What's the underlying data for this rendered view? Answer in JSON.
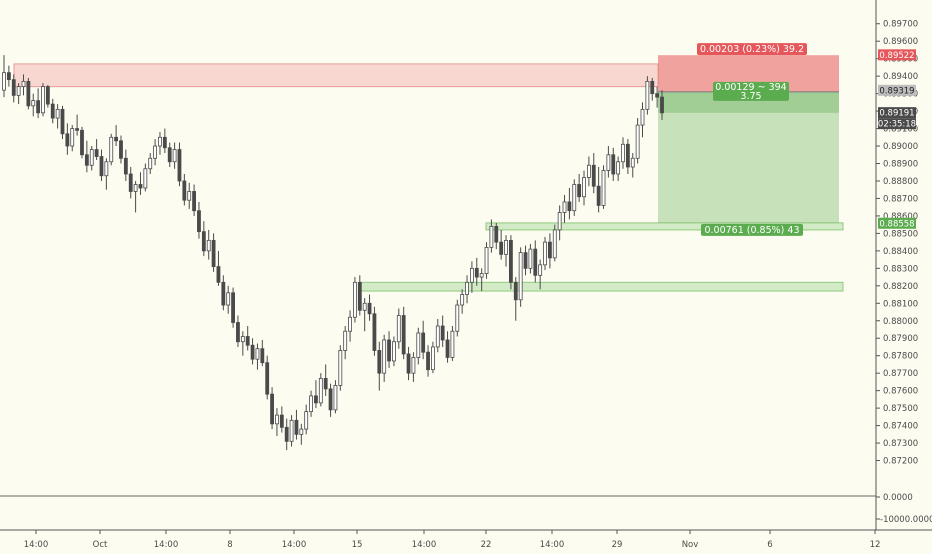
{
  "chart_data": {
    "type": "candlestick",
    "price_axis": {
      "min": 0.871,
      "max": 0.8975,
      "ticks": [
        "0.89700",
        "0.89600",
        "0.89500",
        "0.89400",
        "0.89300",
        "0.89200",
        "0.89100",
        "0.89000",
        "0.88900",
        "0.88800",
        "0.88700",
        "0.88600",
        "0.88500",
        "0.88400",
        "0.88300",
        "0.88200",
        "0.88100",
        "0.88000",
        "0.87900",
        "0.87800",
        "0.87700",
        "0.87600",
        "0.87500",
        "0.87400",
        "0.87300",
        "0.87200"
      ]
    },
    "volume_axis": {
      "ticks": [
        "0.0000",
        "-10000.0000"
      ]
    },
    "time_axis": {
      "ticks": [
        "14:00",
        "Oct",
        "14:00",
        "8",
        "14:00",
        "15",
        "14:00",
        "22",
        "14:00",
        "29",
        "Nov",
        "6",
        "12"
      ]
    },
    "price_labels": {
      "stop": "0.89522",
      "last": "0.89319",
      "current": "0.89191",
      "countdown": "02:35:18",
      "target": "0.88558"
    },
    "position": {
      "risk_label": "0.00203 (0.23%) 39.2",
      "info_line1": "0.00129 ~ 394",
      "info_line2": "3.75",
      "reward_label": "0.00761 (0.85%) 43",
      "entry": 0.8931,
      "stop": 0.8952,
      "target": 0.8856
    },
    "zones": [
      {
        "type": "supply",
        "top": 0.8947,
        "bottom": 0.8934
      },
      {
        "type": "demand",
        "top": 0.8856,
        "bottom": 0.8852
      },
      {
        "type": "demand",
        "top": 0.8822,
        "bottom": 0.8817
      }
    ],
    "colors": {
      "background": "#fdfcf1",
      "candle": "#4a4a4a",
      "risk": "#e5575a",
      "reward": "#5bab4f",
      "zone_red": "#f4b8b6",
      "zone_green": "#bfe2b2"
    },
    "candles": [
      [
        0.8932,
        0.8952,
        0.8928,
        0.8942
      ],
      [
        0.8942,
        0.8946,
        0.8934,
        0.8938
      ],
      [
        0.8938,
        0.8941,
        0.8925,
        0.8929
      ],
      [
        0.8929,
        0.8936,
        0.8924,
        0.8934
      ],
      [
        0.8934,
        0.8941,
        0.8929,
        0.8937
      ],
      [
        0.8937,
        0.8939,
        0.8921,
        0.8923
      ],
      [
        0.8923,
        0.893,
        0.8917,
        0.8926
      ],
      [
        0.8926,
        0.8933,
        0.8916,
        0.8919
      ],
      [
        0.8919,
        0.8936,
        0.8917,
        0.8934
      ],
      [
        0.8934,
        0.8935,
        0.8922,
        0.8924
      ],
      [
        0.8924,
        0.8927,
        0.8913,
        0.8916
      ],
      [
        0.8916,
        0.8924,
        0.891,
        0.8921
      ],
      [
        0.8921,
        0.8923,
        0.8904,
        0.8907
      ],
      [
        0.8907,
        0.8913,
        0.8895,
        0.89
      ],
      [
        0.89,
        0.8912,
        0.8897,
        0.891
      ],
      [
        0.891,
        0.8918,
        0.8906,
        0.8909
      ],
      [
        0.8909,
        0.8911,
        0.8893,
        0.8895
      ],
      [
        0.8895,
        0.8903,
        0.8885,
        0.8889
      ],
      [
        0.8889,
        0.89,
        0.8886,
        0.8898
      ],
      [
        0.8898,
        0.8904,
        0.8892,
        0.8894
      ],
      [
        0.8894,
        0.8898,
        0.888,
        0.8883
      ],
      [
        0.8883,
        0.8893,
        0.8875,
        0.8891
      ],
      [
        0.8891,
        0.8907,
        0.8889,
        0.8905
      ],
      [
        0.8905,
        0.8912,
        0.89,
        0.8903
      ],
      [
        0.8903,
        0.8906,
        0.889,
        0.8893
      ],
      [
        0.8893,
        0.8898,
        0.888,
        0.8884
      ],
      [
        0.8884,
        0.8888,
        0.887,
        0.8874
      ],
      [
        0.8874,
        0.888,
        0.8862,
        0.8878
      ],
      [
        0.8878,
        0.8885,
        0.8872,
        0.8876
      ],
      [
        0.8876,
        0.889,
        0.8874,
        0.8887
      ],
      [
        0.8887,
        0.8896,
        0.8884,
        0.8893
      ],
      [
        0.8893,
        0.8904,
        0.8889,
        0.89
      ],
      [
        0.89,
        0.8908,
        0.8895,
        0.8905
      ],
      [
        0.8905,
        0.891,
        0.8896,
        0.8899
      ],
      [
        0.8899,
        0.8902,
        0.8888,
        0.8891
      ],
      [
        0.8891,
        0.8902,
        0.8887,
        0.8898
      ],
      [
        0.8898,
        0.8902,
        0.8877,
        0.888
      ],
      [
        0.888,
        0.8884,
        0.8866,
        0.8869
      ],
      [
        0.8869,
        0.8879,
        0.8864,
        0.8874
      ],
      [
        0.8874,
        0.8878,
        0.886,
        0.8863
      ],
      [
        0.8863,
        0.8868,
        0.8847,
        0.8851
      ],
      [
        0.8851,
        0.8857,
        0.8837,
        0.884
      ],
      [
        0.884,
        0.8852,
        0.8835,
        0.8846
      ],
      [
        0.8846,
        0.885,
        0.8828,
        0.8831
      ],
      [
        0.8831,
        0.884,
        0.882,
        0.8822
      ],
      [
        0.8822,
        0.8826,
        0.8806,
        0.8809
      ],
      [
        0.8809,
        0.882,
        0.8804,
        0.8816
      ],
      [
        0.8816,
        0.8819,
        0.8796,
        0.8799
      ],
      [
        0.8799,
        0.8803,
        0.8785,
        0.8788
      ],
      [
        0.8788,
        0.8794,
        0.878,
        0.8791
      ],
      [
        0.8791,
        0.8797,
        0.8783,
        0.8786
      ],
      [
        0.8786,
        0.879,
        0.8775,
        0.8778
      ],
      [
        0.8778,
        0.8787,
        0.8772,
        0.8784
      ],
      [
        0.8784,
        0.8789,
        0.8774,
        0.8776
      ],
      [
        0.8776,
        0.878,
        0.8755,
        0.8758
      ],
      [
        0.8758,
        0.8762,
        0.8738,
        0.8741
      ],
      [
        0.8741,
        0.875,
        0.8734,
        0.8746
      ],
      [
        0.8746,
        0.8751,
        0.8736,
        0.8739
      ],
      [
        0.8739,
        0.8744,
        0.8726,
        0.8731
      ],
      [
        0.8731,
        0.8746,
        0.8728,
        0.8743
      ],
      [
        0.8743,
        0.8749,
        0.8732,
        0.8735
      ],
      [
        0.8735,
        0.8741,
        0.8729,
        0.8738
      ],
      [
        0.8738,
        0.8752,
        0.8735,
        0.8748
      ],
      [
        0.8748,
        0.876,
        0.8745,
        0.8757
      ],
      [
        0.8757,
        0.8766,
        0.875,
        0.8753
      ],
      [
        0.8753,
        0.877,
        0.8751,
        0.8767
      ],
      [
        0.8767,
        0.8775,
        0.8757,
        0.8761
      ],
      [
        0.8761,
        0.8764,
        0.8745,
        0.8749
      ],
      [
        0.8749,
        0.8766,
        0.8747,
        0.8763
      ],
      [
        0.8763,
        0.8786,
        0.876,
        0.8783
      ],
      [
        0.8783,
        0.8797,
        0.8778,
        0.8794
      ],
      [
        0.8794,
        0.8806,
        0.8788,
        0.8802
      ],
      [
        0.8802,
        0.8825,
        0.8799,
        0.8822
      ],
      [
        0.8822,
        0.8826,
        0.8803,
        0.8806
      ],
      [
        0.8806,
        0.8813,
        0.8794,
        0.881
      ],
      [
        0.881,
        0.8815,
        0.88,
        0.8804
      ],
      [
        0.8804,
        0.8808,
        0.878,
        0.8783
      ],
      [
        0.8783,
        0.8788,
        0.876,
        0.877
      ],
      [
        0.877,
        0.8792,
        0.8765,
        0.8789
      ],
      [
        0.8789,
        0.8794,
        0.8773,
        0.8777
      ],
      [
        0.8777,
        0.8791,
        0.8774,
        0.8788
      ],
      [
        0.8788,
        0.8807,
        0.8784,
        0.8803
      ],
      [
        0.8803,
        0.8808,
        0.8778,
        0.8781
      ],
      [
        0.8781,
        0.8785,
        0.8766,
        0.877
      ],
      [
        0.877,
        0.8782,
        0.8765,
        0.8779
      ],
      [
        0.8779,
        0.8796,
        0.8775,
        0.8793
      ],
      [
        0.8793,
        0.88,
        0.8778,
        0.8782
      ],
      [
        0.8782,
        0.8786,
        0.8768,
        0.8772
      ],
      [
        0.8772,
        0.8788,
        0.877,
        0.8785
      ],
      [
        0.8785,
        0.8801,
        0.8782,
        0.8797
      ],
      [
        0.8797,
        0.8803,
        0.8785,
        0.8789
      ],
      [
        0.8789,
        0.8794,
        0.8776,
        0.8779
      ],
      [
        0.8779,
        0.8797,
        0.8777,
        0.8794
      ],
      [
        0.8794,
        0.8812,
        0.8791,
        0.8809
      ],
      [
        0.8809,
        0.8818,
        0.8804,
        0.8815
      ],
      [
        0.8815,
        0.8826,
        0.881,
        0.8822
      ],
      [
        0.8822,
        0.8834,
        0.8816,
        0.883
      ],
      [
        0.883,
        0.8836,
        0.882,
        0.8825
      ],
      [
        0.8825,
        0.883,
        0.8817,
        0.8827
      ],
      [
        0.8827,
        0.8845,
        0.8824,
        0.8842
      ],
      [
        0.8842,
        0.8858,
        0.8839,
        0.8854
      ],
      [
        0.8854,
        0.8856,
        0.8841,
        0.8845
      ],
      [
        0.8845,
        0.8852,
        0.8835,
        0.8838
      ],
      [
        0.8838,
        0.8849,
        0.8831,
        0.8846
      ],
      [
        0.8846,
        0.8849,
        0.8818,
        0.8822
      ],
      [
        0.8822,
        0.8825,
        0.88,
        0.8812
      ],
      [
        0.8812,
        0.8842,
        0.8808,
        0.8839
      ],
      [
        0.8839,
        0.8843,
        0.8826,
        0.883
      ],
      [
        0.883,
        0.8844,
        0.8827,
        0.8841
      ],
      [
        0.8841,
        0.8846,
        0.8822,
        0.8826
      ],
      [
        0.8826,
        0.8835,
        0.8818,
        0.8832
      ],
      [
        0.8832,
        0.8848,
        0.8829,
        0.8845
      ],
      [
        0.8845,
        0.885,
        0.883,
        0.8836
      ],
      [
        0.8836,
        0.8855,
        0.8834,
        0.8852
      ],
      [
        0.8852,
        0.8866,
        0.8846,
        0.8862
      ],
      [
        0.8862,
        0.8872,
        0.8856,
        0.8868
      ],
      [
        0.8868,
        0.8876,
        0.8858,
        0.8863
      ],
      [
        0.8863,
        0.8881,
        0.886,
        0.8878
      ],
      [
        0.8878,
        0.8884,
        0.8868,
        0.8871
      ],
      [
        0.8871,
        0.8886,
        0.8866,
        0.8882
      ],
      [
        0.8882,
        0.8894,
        0.8877,
        0.8889
      ],
      [
        0.8889,
        0.8896,
        0.8873,
        0.8877
      ],
      [
        0.8877,
        0.8888,
        0.8862,
        0.8866
      ],
      [
        0.8866,
        0.8889,
        0.8864,
        0.8886
      ],
      [
        0.8886,
        0.89,
        0.8882,
        0.8895
      ],
      [
        0.8895,
        0.8899,
        0.888,
        0.8884
      ],
      [
        0.8884,
        0.8894,
        0.888,
        0.8891
      ],
      [
        0.8891,
        0.8905,
        0.8887,
        0.8901
      ],
      [
        0.8901,
        0.8904,
        0.8884,
        0.8888
      ],
      [
        0.8888,
        0.8896,
        0.8882,
        0.8893
      ],
      [
        0.8893,
        0.8916,
        0.889,
        0.8912
      ],
      [
        0.8912,
        0.8925,
        0.8905,
        0.8921
      ],
      [
        0.8921,
        0.894,
        0.8918,
        0.8937
      ],
      [
        0.8937,
        0.8939,
        0.8926,
        0.893
      ],
      [
        0.893,
        0.8934,
        0.8922,
        0.8928
      ],
      [
        0.8928,
        0.8932,
        0.8915,
        0.8919
      ]
    ]
  }
}
